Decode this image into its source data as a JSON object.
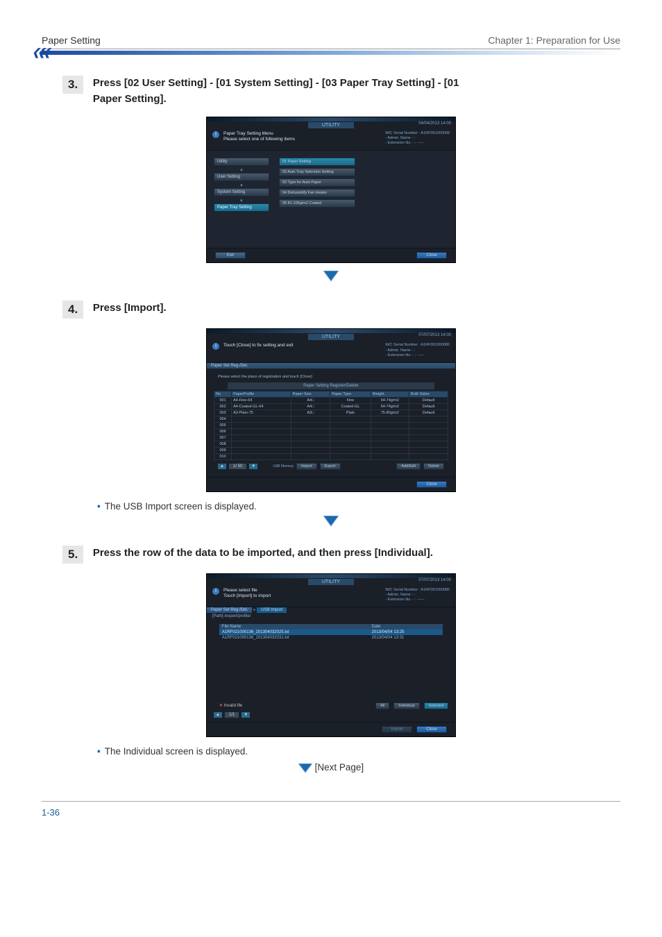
{
  "header": {
    "left": "Paper Setting",
    "right": "Chapter 1: Preparation for Use"
  },
  "steps": {
    "s3": {
      "num": "3.",
      "title": "Press [02 User Setting] - [01 System Setting] - [03 Paper Tray Setting] - [01 Paper Setting]."
    },
    "s4": {
      "num": "4.",
      "title": "Press [Import].",
      "bullet": "The USB Import screen is displayed."
    },
    "s5": {
      "num": "5.",
      "title": "Press the row of the data to be imported, and then press [Individual].",
      "bullet": "The Individual screen is displayed."
    }
  },
  "screen3": {
    "utility": "UTILITY",
    "datetime": "04/04/2013 14:00",
    "info_line1": "Paper Tray Setting Menu",
    "info_line2": "Please select one of following items",
    "serial": "M/C Serial Number : A1RF001000008",
    "admin": "- Admin. Name - :",
    "ext": "- Extension No. - : ------",
    "left_menu": [
      "Utility",
      "User Setting",
      "System Setting",
      "Paper Tray Setting"
    ],
    "right_menu": [
      "01 Paper Setting",
      "02 Auto Tray Selection Setting",
      "03 Type for Auto Paper",
      "04 Dehumidify Fan Heater",
      "05 81-105g/m2 Coated"
    ],
    "exit": "Exit",
    "close": "Close"
  },
  "screen4": {
    "utility": "UTILITY",
    "datetime": "07/07/2013 14:00",
    "info": "Touch [Close] to fix setting and exit",
    "serial": "M/C Serial Number : A1RF001000080",
    "admin": "- Admin. Name - :",
    "ext": "- Extension No. - : ------",
    "crumb": "Paper Set Reg./Del.",
    "hint": "Please select the place of registration and touch [Close]",
    "tab": "Paper Setting Register/Delete",
    "cols": [
      "No",
      "PaperProfile",
      "Paper Size",
      "Paper Type",
      "Weight",
      "Both Sides"
    ],
    "rows": [
      [
        "001",
        "A4-Fine-64",
        "A4□",
        "Fine",
        "64-74g/m2",
        "Default"
      ],
      [
        "002",
        "A4-Coated-GL-64",
        "A4□",
        "Coated-GL",
        "64-74g/m2",
        "Default"
      ],
      [
        "003",
        "A3-Plain-75",
        "A3□",
        "Plain",
        "75-80g/m2",
        "Default"
      ],
      [
        "004",
        "",
        "",
        "",
        "",
        ""
      ],
      [
        "005",
        "",
        "",
        "",
        "",
        ""
      ],
      [
        "006",
        "",
        "",
        "",
        "",
        ""
      ],
      [
        "007",
        "",
        "",
        "",
        "",
        ""
      ],
      [
        "008",
        "",
        "",
        "",
        "",
        ""
      ],
      [
        "009",
        "",
        "",
        "",
        "",
        ""
      ],
      [
        "010",
        "",
        "",
        "",
        "",
        ""
      ]
    ],
    "pager": "1/ 50",
    "usb_label": "USB Memory",
    "import": "Import",
    "export": "Export",
    "addedit": "Add/Edit",
    "delete": "Delete",
    "close": "Close"
  },
  "screen5": {
    "utility": "UTILITY",
    "datetime": "07/07/2013 14:00",
    "info1": "Please select file",
    "info2": "Touch [Import] to import",
    "serial": "M/C Serial Number : A1RF001000080",
    "admin": "- Admin. Name - :",
    "ext": "- Extension No. - : ------",
    "crumb1": "Paper Set Reg./Del.",
    "crumb2": "USB Import",
    "path": "[Path] /export/profile/",
    "col_file": "File Name",
    "col_date": "Date",
    "rows": [
      {
        "file": "A1RF021000136_201304032025.txt",
        "date": "2013/04/04 13:25"
      },
      {
        "file": "A1RF021000136_201304032031.txt",
        "date": "2013/04/04 13:31"
      }
    ],
    "invalid": "Invalid file",
    "pager": "1/1",
    "all": "All",
    "individual": "Individual",
    "selected": "Selected",
    "import": "Import",
    "close": "Close"
  },
  "next_page": "[Next Page]",
  "page_num": "1-36",
  "colors": {
    "bullet": "#1a6ab0",
    "arrow_fill": "#1a6ab0",
    "arrow_border": "#8ab0d0"
  }
}
